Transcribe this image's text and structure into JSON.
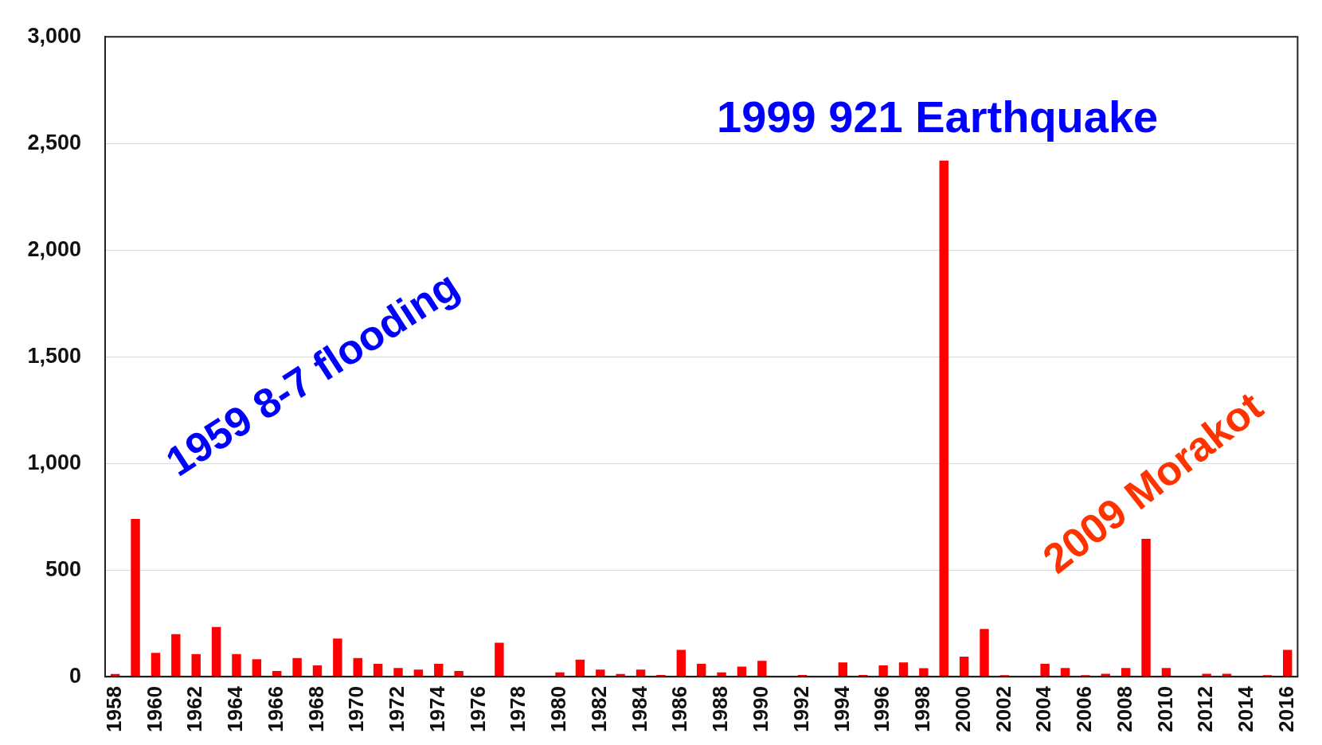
{
  "chart_data": {
    "type": "bar",
    "categories": [
      "1958",
      null,
      "1960",
      null,
      "1962",
      null,
      "1964",
      null,
      "1966",
      null,
      "1968",
      null,
      "1970",
      null,
      "1972",
      null,
      "1974",
      null,
      "1976",
      null,
      "1978",
      null,
      "1980",
      null,
      "1982",
      null,
      "1984",
      null,
      "1986",
      null,
      "1988",
      null,
      "1990",
      null,
      "1992",
      null,
      "1994",
      null,
      "1996",
      null,
      "1998",
      null,
      "2000",
      null,
      "2002",
      null,
      "2004",
      null,
      "2006",
      null,
      "2008",
      null,
      "2010",
      null,
      "2012",
      null,
      "2014",
      null,
      "2016"
    ],
    "values": [
      13,
      739,
      112,
      199,
      106,
      233,
      106,
      82,
      27,
      87,
      53,
      179,
      87,
      60,
      41,
      33,
      60,
      27,
      0,
      159,
      0,
      0,
      20,
      80,
      33,
      13,
      33,
      8,
      126,
      60,
      20,
      47,
      74,
      0,
      8,
      0,
      67,
      8,
      53,
      67,
      40,
      2420,
      94,
      224,
      7,
      0,
      60,
      41,
      7,
      14,
      41,
      646,
      41,
      0,
      14,
      14,
      0,
      7,
      126
    ],
    "color": "#ff0000",
    "ylim": [
      0,
      3000
    ],
    "yticks": [
      0,
      500,
      {
        "value": 1000,
        "label": "1,000"
      },
      {
        "value": 1500,
        "label": "1,500"
      },
      {
        "value": 2000,
        "label": "2,000"
      },
      {
        "value": 2500,
        "label": "2,500"
      },
      {
        "value": 3000,
        "label": "3,000"
      }
    ],
    "grid": "y",
    "legend": false,
    "annotations": [
      "1959 8-7 flooding",
      "1999 921 Earthquake",
      "2009 Morakot"
    ]
  }
}
